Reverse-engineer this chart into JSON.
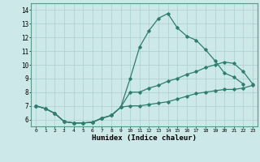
{
  "xlabel": "Humidex (Indice chaleur)",
  "ylabel": "",
  "xlim": [
    -0.5,
    23.5
  ],
  "ylim": [
    5.5,
    14.5
  ],
  "yticks": [
    6,
    7,
    8,
    9,
    10,
    11,
    12,
    13,
    14
  ],
  "xticks": [
    0,
    1,
    2,
    3,
    4,
    5,
    6,
    7,
    8,
    9,
    10,
    11,
    12,
    13,
    14,
    15,
    16,
    17,
    18,
    19,
    20,
    21,
    22,
    23
  ],
  "bg_color": "#cde8e8",
  "line_color": "#2e7d6e",
  "grid_color": "#aacfcf",
  "curve_high": [
    7.0,
    6.8,
    6.45,
    5.85,
    5.75,
    5.75,
    5.8,
    6.1,
    6.3,
    6.9,
    9.0,
    11.3,
    12.5,
    13.4,
    13.75,
    12.7,
    12.1,
    11.8,
    11.1,
    10.3,
    9.4,
    9.1,
    8.6,
    null
  ],
  "curve_mid": [
    7.0,
    6.8,
    6.45,
    5.85,
    5.75,
    5.75,
    5.8,
    6.1,
    6.3,
    6.9,
    8.0,
    8.0,
    8.3,
    8.5,
    8.8,
    9.0,
    9.3,
    9.5,
    9.8,
    10.0,
    10.2,
    10.1,
    9.5,
    8.6
  ],
  "curve_low": [
    7.0,
    6.8,
    6.45,
    5.85,
    5.75,
    5.75,
    5.8,
    6.1,
    6.3,
    6.9,
    7.0,
    7.0,
    7.1,
    7.2,
    7.3,
    7.5,
    7.7,
    7.9,
    8.0,
    8.1,
    8.2,
    8.2,
    8.3,
    8.5
  ]
}
